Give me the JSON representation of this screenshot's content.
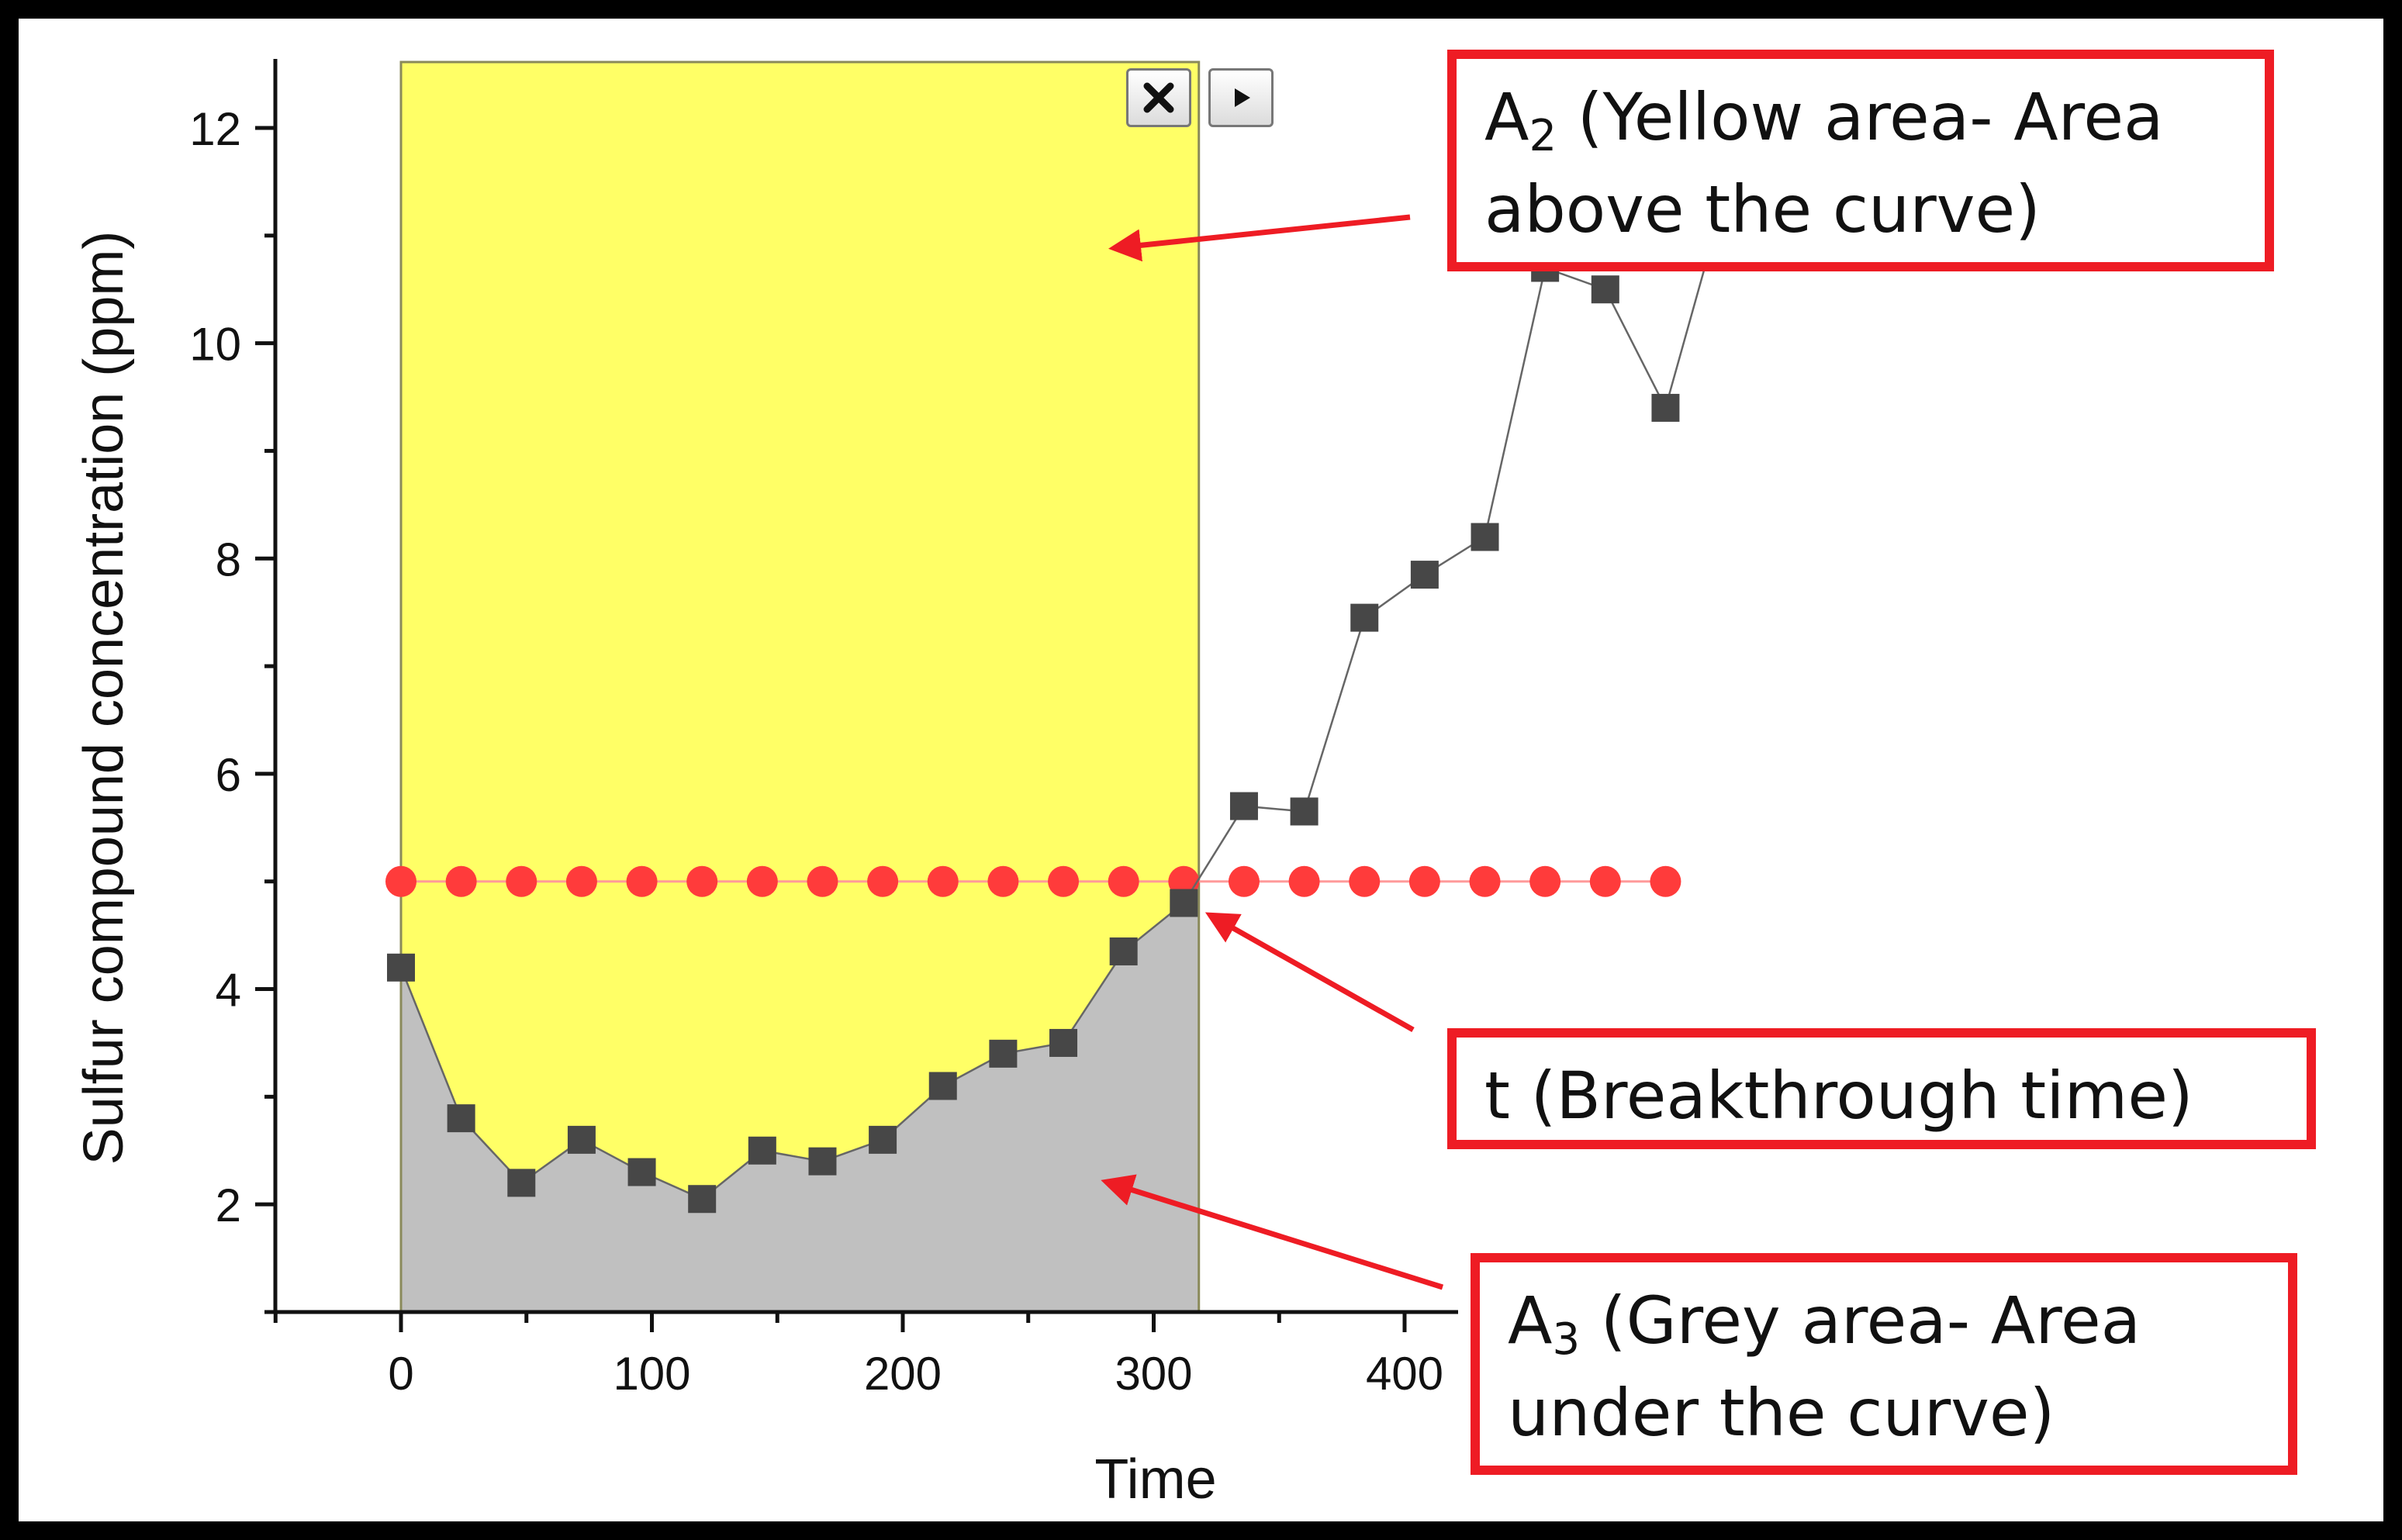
{
  "chart_data": {
    "type": "line",
    "title": "",
    "xlabel": "Time",
    "ylabel": "Sulfur compound concentration (ppm)",
    "xlim": [
      -50,
      525
    ],
    "ylim": [
      1,
      13
    ],
    "xticks": [
      0,
      100,
      200,
      300,
      400
    ],
    "yticks": [
      2,
      4,
      6,
      8,
      10,
      12
    ],
    "grid": false,
    "series": [
      {
        "name": "",
        "marker": "square",
        "color": "#474747",
        "x": [
          0,
          24,
          48,
          72,
          96,
          120,
          144,
          168,
          192,
          216,
          240,
          264,
          288,
          312,
          336,
          360,
          384,
          408,
          432,
          456,
          480,
          504,
          528,
          552
        ],
        "y": [
          4.2,
          2.8,
          2.2,
          2.6,
          2.3,
          2.05,
          2.5,
          2.4,
          2.6,
          3.1,
          3.4,
          3.5,
          4.35,
          4.8,
          5.7,
          5.65,
          7.45,
          7.85,
          8.2,
          10.7,
          10.5,
          9.4,
          11.4,
          11.0
        ]
      },
      {
        "name": "",
        "marker": "circle",
        "color": "#ff3b3b",
        "x": [
          0,
          24,
          48,
          72,
          96,
          120,
          144,
          168,
          192,
          216,
          240,
          264,
          288,
          312,
          336,
          360,
          384,
          408,
          432,
          456,
          480,
          504
        ],
        "y": [
          5,
          5,
          5,
          5,
          5,
          5,
          5,
          5,
          5,
          5,
          5,
          5,
          5,
          5,
          5,
          5,
          5,
          5,
          5,
          5,
          5,
          5
        ]
      }
    ],
    "shaded_regions": [
      {
        "name": "A2",
        "color": "#ffff66",
        "x_range": [
          0,
          318
        ],
        "between": "curve and top of axis"
      },
      {
        "name": "A3",
        "color": "#c0c0c0",
        "x_range": [
          0,
          318
        ],
        "between": "curve and bottom of axis"
      }
    ],
    "annotations": [
      {
        "id": "a2",
        "symbol": "A",
        "sub": "2",
        "line1": " (Yellow area- Area",
        "line2": "above the curve)"
      },
      {
        "id": "t",
        "text": "t (Breakthrough time)"
      },
      {
        "id": "a3",
        "symbol": "A",
        "sub": "3",
        "line1": " (Grey area- Area",
        "line2": "under the curve)"
      }
    ]
  },
  "controls": {
    "close_icon": "close-icon",
    "play_icon": "play-icon"
  }
}
